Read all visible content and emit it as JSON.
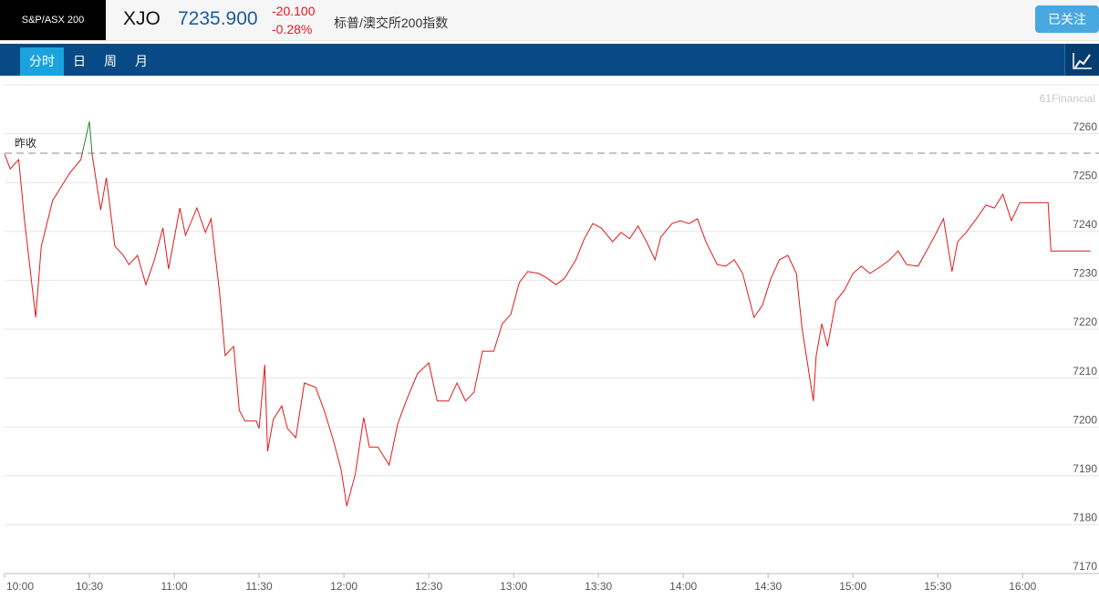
{
  "header": {
    "index_name": "S&P/ASX 200",
    "symbol": "XJO",
    "price": "7235.900",
    "change": "-20.100",
    "change_pct": "-0.28%",
    "name_cn": "标普/澳交所200指数",
    "follow_button": "已关注"
  },
  "tabs": [
    "分时",
    "日",
    "周",
    "月"
  ],
  "chart_data": {
    "type": "line",
    "watermark": "61Financial",
    "prev_close_label": "昨收",
    "prev_close": 7256,
    "x": [
      "10:00",
      "10:02",
      "10:05",
      "10:07",
      "10:11",
      "10:13",
      "10:17",
      "10:20",
      "10:23",
      "10:27",
      "10:30",
      "10:31",
      "10:34",
      "10:36",
      "10:39",
      "10:42",
      "10:44",
      "10:47",
      "10:50",
      "10:53",
      "10:56",
      "10:58",
      "11:02",
      "11:04",
      "11:08",
      "11:11",
      "11:13",
      "11:16",
      "11:18",
      "11:21",
      "11:23",
      "11:25",
      "11:29",
      "11:30",
      "11:32",
      "11:33",
      "11:35",
      "11:38",
      "11:40",
      "11:43",
      "11:46",
      "11:50",
      "11:53",
      "11:56",
      "11:59",
      "12:01",
      "12:04",
      "12:07",
      "12:09",
      "12:12",
      "12:16",
      "12:19",
      "12:22",
      "12:26",
      "12:30",
      "12:33",
      "12:37",
      "12:40",
      "12:43",
      "12:46",
      "12:49",
      "12:53",
      "12:56",
      "12:59",
      "13:02",
      "13:05",
      "13:09",
      "13:12",
      "13:15",
      "13:18",
      "13:22",
      "13:25",
      "13:28",
      "13:31",
      "13:35",
      "13:38",
      "13:41",
      "13:44",
      "13:47",
      "13:50",
      "13:52",
      "13:56",
      "13:59",
      "14:02",
      "14:05",
      "14:08",
      "14:12",
      "14:15",
      "14:18",
      "14:21",
      "14:25",
      "14:28",
      "14:31",
      "14:34",
      "14:37",
      "14:40",
      "14:42",
      "14:46",
      "14:47",
      "14:49",
      "14:51",
      "14:54",
      "14:57",
      "15:00",
      "15:03",
      "15:06",
      "15:10",
      "15:13",
      "15:16",
      "15:19",
      "15:23",
      "15:26",
      "15:29",
      "15:32",
      "15:35",
      "15:37",
      "15:40",
      "15:44",
      "15:47",
      "15:50",
      "15:53",
      "15:56",
      "15:59",
      "16:09",
      "16:10",
      "16:24"
    ],
    "series": [
      {
        "color": "#e0191b",
        "values": [
          7255.8,
          7252.8,
          7254.7,
          7242.6,
          7222.4,
          7237.0,
          7246.3,
          7249.1,
          7251.9,
          7254.7,
          7262.5,
          7255.6,
          7244.4,
          7251.0,
          7237.0,
          7235.1,
          7233.2,
          7235.1,
          7229.1,
          7234.2,
          7240.7,
          7232.3,
          7244.8,
          7239.2,
          7244.8,
          7239.8,
          7242.6,
          7227.6,
          7214.6,
          7216.5,
          7203.4,
          7201.2,
          7201.2,
          7199.7,
          7212.7,
          7195.0,
          7201.5,
          7204.3,
          7199.7,
          7197.8,
          7209.0,
          7208.1,
          7203.4,
          7197.8,
          7191.3,
          7183.8,
          7190.3,
          7201.9,
          7195.9,
          7195.9,
          7192.2,
          7200.6,
          7205.3,
          7210.9,
          7213.1,
          7205.3,
          7205.3,
          7209.0,
          7205.3,
          7207.1,
          7215.5,
          7215.5,
          7221.1,
          7223.0,
          7229.5,
          7231.8,
          7231.4,
          7230.4,
          7229.1,
          7230.4,
          7234.2,
          7238.5,
          7241.6,
          7240.7,
          7237.9,
          7239.8,
          7238.5,
          7241.1,
          7237.9,
          7234.2,
          7238.8,
          7241.6,
          7242.2,
          7241.6,
          7242.6,
          7237.9,
          7233.2,
          7232.9,
          7234.2,
          7231.4,
          7222.4,
          7224.9,
          7230.4,
          7234.2,
          7235.1,
          7231.4,
          7220.2,
          7205.3,
          7214.6,
          7221.1,
          7216.5,
          7225.8,
          7228.0,
          7231.4,
          7232.9,
          7231.4,
          7232.9,
          7234.2,
          7236.0,
          7233.2,
          7232.9,
          7236.0,
          7239.2,
          7242.6,
          7231.8,
          7237.9,
          7239.8,
          7242.9,
          7245.4,
          7244.8,
          7247.6,
          7242.2,
          7245.9,
          7245.9,
          7236.0,
          7236.0
        ]
      }
    ],
    "up_color": "#1f8a1f",
    "xlim": [
      "10:00",
      "16:27"
    ],
    "ylim": [
      7170,
      7270
    ],
    "xticks": [
      "10:00",
      "10:30",
      "11:00",
      "11:30",
      "12:00",
      "12:30",
      "13:00",
      "13:30",
      "14:00",
      "14:30",
      "15:00",
      "15:30",
      "16:00"
    ],
    "yticks": [
      7170,
      7180,
      7190,
      7200,
      7210,
      7220,
      7230,
      7240,
      7250,
      7260
    ],
    "grid": true
  }
}
